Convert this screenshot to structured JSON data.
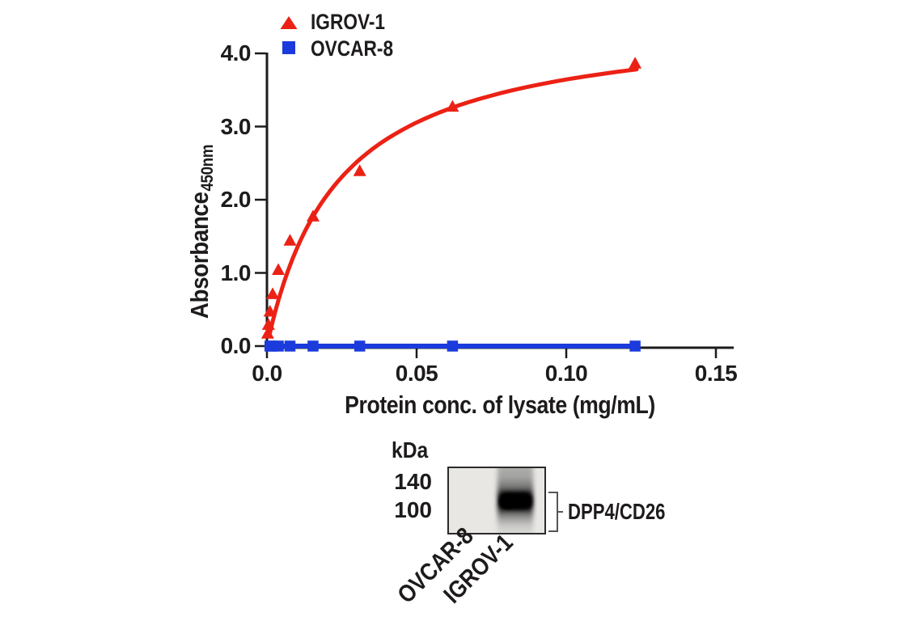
{
  "figure": {
    "legend": {
      "items": [
        {
          "label": "IGROV-1",
          "marker": "triangle-icon",
          "color": "#ec2115"
        },
        {
          "label": "OVCAR-8",
          "marker": "square-icon",
          "color": "#1b3bdc"
        }
      ]
    },
    "x_axis": {
      "title": "Protein conc. of lysate (mg/mL)"
    },
    "y_axis": {
      "title": "Absorbance",
      "title_subscript": "450nm"
    }
  },
  "chart_data": {
    "type": "scatter",
    "title": "",
    "xlabel": "Protein conc. of lysate (mg/mL)",
    "ylabel": "Absorbance 450nm",
    "xlim": [
      0,
      0.156
    ],
    "ylim": [
      0,
      4.0
    ],
    "grid": false,
    "legend_position": "top-left",
    "x_ticks": [
      {
        "value": 0.0,
        "label": "0.0"
      },
      {
        "value": 0.05,
        "label": "0.05"
      },
      {
        "value": 0.1,
        "label": "0.10"
      },
      {
        "value": 0.15,
        "label": "0.15"
      }
    ],
    "y_ticks": [
      {
        "value": 0.0,
        "label": "0.0"
      },
      {
        "value": 1.0,
        "label": "1.0"
      },
      {
        "value": 2.0,
        "label": "2.0"
      },
      {
        "value": 3.0,
        "label": "3.0"
      },
      {
        "value": 4.0,
        "label": "4.0"
      }
    ],
    "series": [
      {
        "name": "IGROV-1",
        "marker": "triangle",
        "color": "#ec2115",
        "points": [
          [
            0.00024,
            0.18
          ],
          [
            0.0005,
            0.3
          ],
          [
            0.001,
            0.48
          ],
          [
            0.0019,
            0.72
          ],
          [
            0.0038,
            1.05
          ],
          [
            0.0077,
            1.45
          ],
          [
            0.0154,
            1.78
          ],
          [
            0.031,
            2.4
          ],
          [
            0.062,
            3.28
          ],
          [
            0.123,
            3.87
          ]
        ],
        "fit_curve": {
          "type": "michaelis_menten",
          "vmax": 4.51,
          "km": 0.0238,
          "x_start": 0.0008,
          "x_end": 0.1235
        }
      },
      {
        "name": "OVCAR-8",
        "marker": "square",
        "color": "#1b3bdc",
        "points": [
          [
            0.001,
            0.0
          ],
          [
            0.0019,
            0.0
          ],
          [
            0.0038,
            0.0
          ],
          [
            0.0077,
            0.0
          ],
          [
            0.0154,
            0.0
          ],
          [
            0.031,
            0.0
          ],
          [
            0.062,
            0.0
          ],
          [
            0.123,
            0.0
          ]
        ],
        "fit_curve": {
          "type": "flat",
          "y": 0.0,
          "x_start": 0.0008,
          "x_end": 0.1235
        }
      }
    ]
  },
  "blot": {
    "unit_label": "kDa",
    "mw_markers": [
      "140",
      "100"
    ],
    "band_label": "DPP4/CD26",
    "lane_labels": [
      "OVCAR-8",
      "IGROV-1"
    ]
  }
}
